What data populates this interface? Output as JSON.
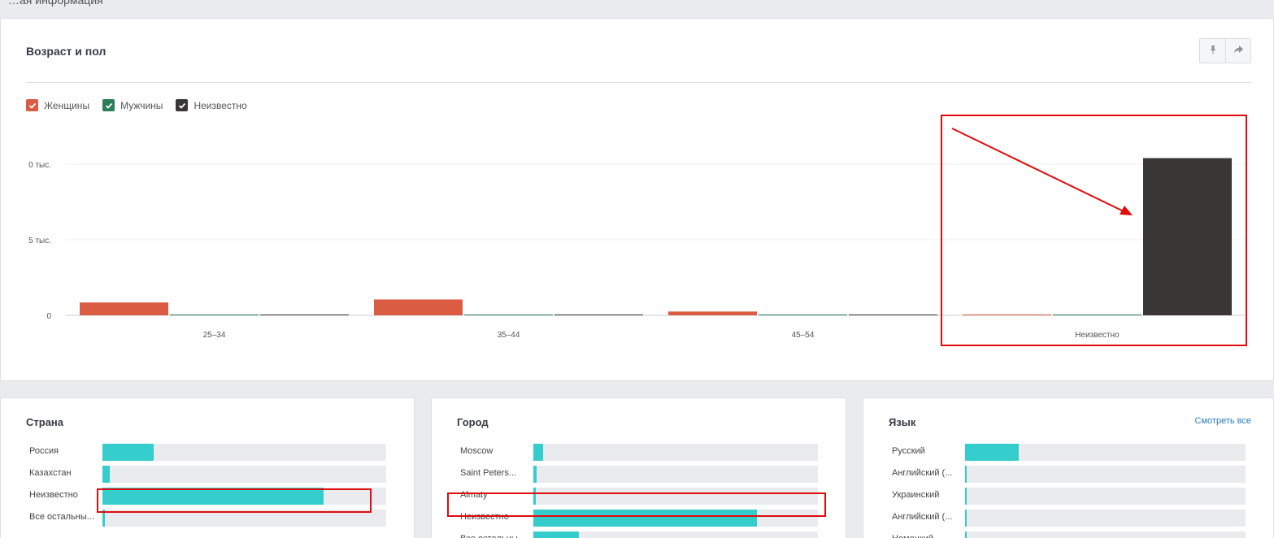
{
  "page": {
    "top_heading_cut": "…ая информация"
  },
  "age_gender": {
    "title": "Возраст и пол",
    "tools": {
      "pin_icon": "pin-icon",
      "share_icon": "share-icon"
    },
    "legend": [
      {
        "label": "Женщины",
        "color": "#d95c43",
        "checked": true
      },
      {
        "label": "Мужчины",
        "color": "#2e7d5b",
        "checked": true
      },
      {
        "label": "Неизвестно",
        "color": "#3a3635",
        "checked": true
      }
    ]
  },
  "chart_data": {
    "type": "bar",
    "title": "Возраст и пол",
    "categories": [
      "25–34",
      "35–44",
      "45–54",
      "Неизвестно"
    ],
    "y_tick_labels": [
      "0 тыс.",
      "5 тыс.",
      "0"
    ],
    "ylim": [
      0,
      10000
    ],
    "series": [
      {
        "name": "Женщины",
        "color": "#d95c43",
        "values": [
          850,
          1050,
          250,
          0
        ]
      },
      {
        "name": "Мужчины",
        "color": "#2e7d5b",
        "values": [
          30,
          30,
          30,
          30
        ]
      },
      {
        "name": "Неизвестно",
        "color": "#3a3635",
        "values": [
          30,
          30,
          30,
          10400
        ]
      }
    ],
    "grid": true,
    "legend_position": "top-left"
  },
  "country": {
    "title": "Страна",
    "rows": [
      {
        "label": "Россия",
        "share": 0.18
      },
      {
        "label": "Казахстан",
        "share": 0.025
      },
      {
        "label": "Неизвестно",
        "share": 0.78
      },
      {
        "label": "Все остальны...",
        "share": 0.01
      }
    ]
  },
  "city": {
    "title": "Город",
    "rows": [
      {
        "label": "Moscow",
        "share": 0.035
      },
      {
        "label": "Saint Peters...",
        "share": 0.01
      },
      {
        "label": "Almaty",
        "share": 0.008
      },
      {
        "label": "Неизвестно",
        "share": 0.786
      },
      {
        "label": "Все остальны...",
        "share": 0.16
      }
    ]
  },
  "language": {
    "title": "Язык",
    "see_all": "Смотреть все",
    "rows": [
      {
        "label": "Русский",
        "share": 0.19
      },
      {
        "label": "Английский (...",
        "share": 0.004
      },
      {
        "label": "Украинский",
        "share": 0.002
      },
      {
        "label": "Английский (...",
        "share": 0.002
      },
      {
        "label": "Немецкий",
        "share": 0.002
      }
    ]
  }
}
